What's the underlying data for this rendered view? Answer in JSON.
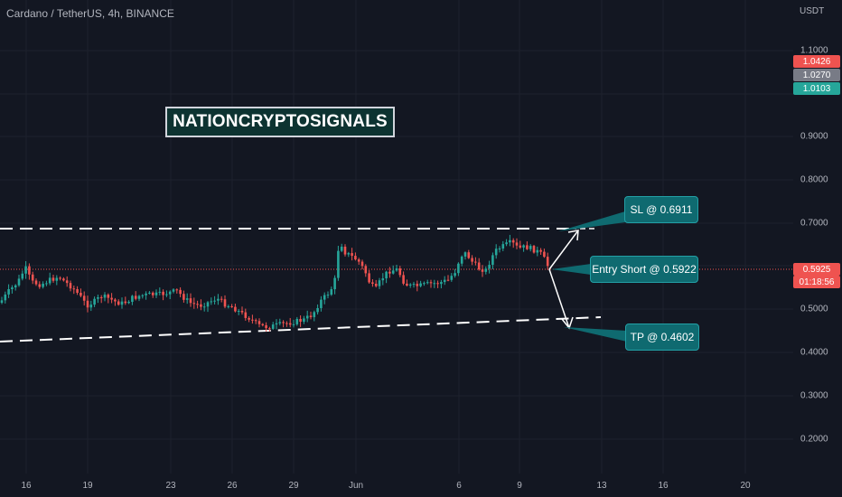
{
  "header": {
    "ticker": "Cardano / TetherUS, 4h, BINANCE"
  },
  "axis": {
    "currency": "USDT",
    "y_ticks": [
      "1.1000",
      "0.9000",
      "0.8000",
      "0.7000",
      "0.5000",
      "0.4000",
      "0.3000",
      "0.2000"
    ],
    "x_ticks": [
      "16",
      "19",
      "23",
      "26",
      "29",
      "Jun",
      "6",
      "9",
      "13",
      "16",
      "20"
    ]
  },
  "price_badges": {
    "high": "1.0426",
    "mid": "1.0270",
    "low": "1.0103",
    "current": "0.5925",
    "countdown": "01:18:56"
  },
  "colors": {
    "background": "#131722",
    "up": "#26a69a",
    "down": "#ef5350",
    "callout": "#0f6a70",
    "dashed_line": "#ffffff",
    "current_price_line": "#ef5350"
  },
  "watermark": {
    "text": "NATIONCRYPTOSIGNALS"
  },
  "annotations": {
    "sl": "SL @ 0.6911",
    "entry": "Entry Short @ 0.5922",
    "tp": "TP @ 0.4602"
  }
}
